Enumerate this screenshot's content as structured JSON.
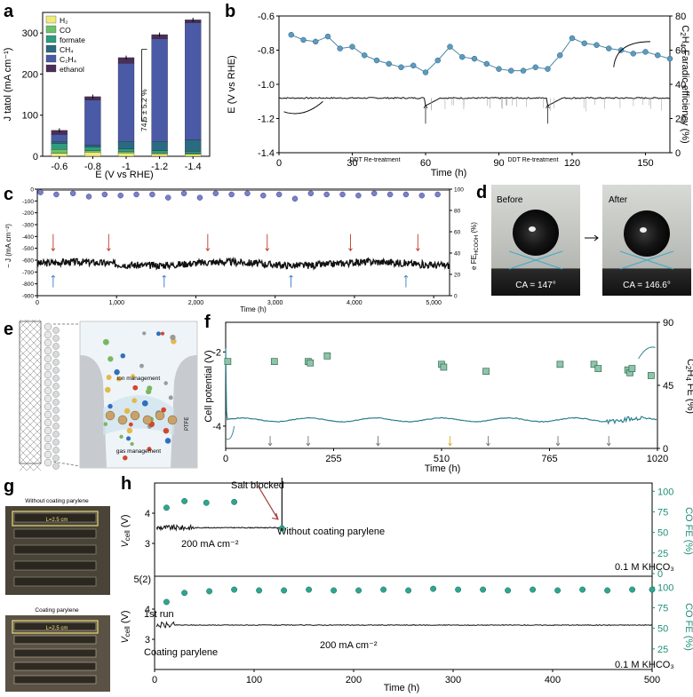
{
  "panel_labels": {
    "a": "a",
    "b": "b",
    "c": "c",
    "d": "d",
    "e": "e",
    "f": "f",
    "g": "g",
    "h": "h"
  },
  "chart_data": [
    {
      "id": "a",
      "type": "bar",
      "xlabel": "E (V vs RHE)",
      "ylabel": "J tatol (mA cm⁻¹)",
      "categories": [
        "-0.6",
        "-0.8",
        "-1",
        "-1.2",
        "-1.4"
      ],
      "ylim": [
        0,
        350
      ],
      "yticks": [
        0,
        100,
        200,
        300
      ],
      "legend": [
        "H2",
        "CO",
        "formate",
        "CH4",
        "C2H4",
        "ethanol"
      ],
      "legend_display": [
        "H₂",
        "CO",
        "formate",
        "CH₄",
        "C₂H₄",
        "ethanol"
      ],
      "colors": [
        "#ecec7a",
        "#6cc26a",
        "#2e9c7e",
        "#2a6b82",
        "#4a5aa6",
        "#4a2e57"
      ],
      "series": [
        {
          "name": "H2",
          "values": [
            7,
            10,
            8,
            6,
            5
          ]
        },
        {
          "name": "CO",
          "values": [
            10,
            4,
            3,
            2,
            2
          ]
        },
        {
          "name": "formate",
          "values": [
            14,
            8,
            7,
            6,
            5
          ]
        },
        {
          "name": "CH4",
          "values": [
            5,
            5,
            18,
            22,
            28
          ]
        },
        {
          "name": "C2H4",
          "values": [
            17,
            110,
            190,
            250,
            285
          ]
        },
        {
          "name": "ethanol",
          "values": [
            10,
            8,
            14,
            10,
            7
          ]
        }
      ],
      "totals": [
        63,
        145,
        240,
        296,
        332
      ],
      "annotation": "74.5 ± 5.2 %"
    },
    {
      "id": "b",
      "type": "line",
      "xlabel": "Time (h)",
      "ylabel": "E (V vs RHE)",
      "ylabel_right": "C2H4 Faradic efficiency (%)",
      "xlim": [
        0,
        160
      ],
      "xticks": [
        0,
        30,
        60,
        90,
        120,
        150
      ],
      "ylim": [
        -1.4,
        -0.6
      ],
      "yticks": [
        -0.6,
        -0.8,
        -1.0,
        -1.2,
        -1.4
      ],
      "ylim_right": [
        0,
        80
      ],
      "yticks_right": [
        0,
        20,
        40,
        60,
        80
      ],
      "fe_x": [
        5,
        10,
        15,
        20,
        25,
        30,
        35,
        40,
        45,
        50,
        55,
        60,
        65,
        70,
        75,
        80,
        85,
        90,
        95,
        100,
        105,
        110,
        115,
        120,
        125,
        130,
        135,
        140,
        145,
        150,
        155,
        160
      ],
      "fe_y": [
        69,
        66,
        65,
        68,
        61,
        62,
        57,
        54,
        52,
        50,
        51,
        47,
        54,
        62,
        56,
        55,
        52,
        49,
        48,
        48,
        50,
        49,
        57,
        67,
        64,
        63,
        61,
        60,
        58,
        59,
        57,
        55
      ],
      "potential_base": -1.08,
      "annotations": [
        "DDT Re-treatment",
        "DDT Re-treatment"
      ],
      "treatment_times_h": [
        60,
        110
      ]
    },
    {
      "id": "c",
      "type": "line",
      "xlabel": "Time (h)",
      "ylabel": "− J (mA cm⁻²)",
      "ylabel_right": "FE HCOOH (%)",
      "xlim": [
        0,
        5200
      ],
      "xticks": [
        0,
        1000,
        2000,
        3000,
        4000,
        5000
      ],
      "xtick_labels": [
        "0",
        "1,000",
        "2,000",
        "3,000",
        "4,000",
        "5,000"
      ],
      "ylim": [
        -900,
        0
      ],
      "yticks": [
        0,
        -100,
        -200,
        -300,
        -400,
        -500,
        -600,
        -700,
        -800,
        -900
      ],
      "ylim_right": [
        0,
        100
      ],
      "yticks_right": [
        0,
        20,
        40,
        60,
        80,
        100
      ],
      "fe_x": [
        40,
        240,
        450,
        650,
        850,
        1050,
        1250,
        1450,
        1650,
        1850,
        2050,
        2250,
        2450,
        2650,
        2850,
        3050,
        3250,
        3450,
        3650,
        3850,
        4050,
        4250,
        4450,
        4650,
        4850,
        5050
      ],
      "fe_y": [
        97,
        95,
        96,
        93,
        95,
        94,
        95,
        95,
        92,
        96,
        92,
        96,
        95,
        96,
        94,
        95,
        91,
        96,
        95,
        95,
        94,
        96,
        95,
        95,
        94,
        95
      ],
      "current_base": -630,
      "red_arrow_times_h": [
        200,
        900,
        2150,
        2900,
        3950,
        4800
      ],
      "blue_arrow_times_h": [
        200,
        1600,
        3200,
        4650
      ]
    },
    {
      "id": "f",
      "type": "scatter",
      "xlabel": "Time (h)",
      "ylabel": "Cell potential (V)",
      "ylabel_right": "C2H4 FE (%)",
      "xlim": [
        0,
        1020
      ],
      "xticks": [
        0,
        255,
        510,
        765,
        1020
      ],
      "ylim": [
        -4.6,
        -1.2
      ],
      "yticks": [
        -2,
        -4
      ],
      "ylim_right": [
        0,
        90
      ],
      "yticks_right": [
        0,
        45,
        90
      ],
      "fe_x": [
        5,
        115,
        195,
        200,
        240,
        510,
        515,
        615,
        790,
        870,
        880,
        950,
        955,
        960,
        1005
      ],
      "fe_y": [
        62,
        62,
        62,
        61,
        66,
        60,
        58,
        55,
        60,
        60,
        57,
        56,
        54,
        57,
        52
      ],
      "cell_potential_base": -3.83,
      "gray_arrow_times_h": [
        105,
        195,
        360,
        620,
        785,
        905
      ],
      "yellow_arrow_times_h": [
        530
      ]
    },
    {
      "id": "h",
      "type": "line",
      "xlabel": "Time (h)",
      "ylabel": "Vcell (V)",
      "ylabel_right": "CO FE (%)",
      "xlim": [
        0,
        500
      ],
      "xticks": [
        0,
        100,
        200,
        300,
        400,
        500
      ],
      "top": {
        "ylim": [
          2,
          5
        ],
        "yticks": [
          2,
          3,
          4
        ],
        "yticks_right": [
          0,
          25,
          50,
          75,
          100
        ],
        "fe_x": [
          12,
          30,
          52,
          80,
          128
        ],
        "fe_y": [
          80,
          88,
          86,
          87,
          55
        ],
        "vcell_base": 3.52,
        "labels": {
          "blocked": "Salt blocked",
          "current": "200 mA cm⁻²",
          "condition": "Without coating parylene",
          "electrolyte": "0.1 M KHCO₃"
        }
      },
      "divider_label": "5(2)",
      "bottom": {
        "ylim": [
          2,
          5
        ],
        "yticks": [
          3,
          4
        ],
        "yticks_right": [
          25,
          50,
          75,
          100
        ],
        "fe_x": [
          12,
          30,
          55,
          80,
          105,
          130,
          155,
          180,
          205,
          230,
          255,
          280,
          305,
          330,
          355,
          380,
          405,
          430,
          455,
          480,
          500
        ],
        "fe_y": [
          82,
          93,
          95,
          97,
          96,
          96,
          97,
          96,
          96,
          97,
          96,
          98,
          97,
          97,
          96,
          97,
          96,
          97,
          96,
          97,
          97
        ],
        "vcell_base": 3.47,
        "labels": {
          "run": "1st run",
          "condition": "Coating parylene",
          "current": "200 mA cm⁻²",
          "electrolyte": "0.1 M KHCO₃"
        }
      }
    }
  ],
  "panel_d": {
    "before": "Before",
    "after": "After",
    "ca_before": "CA = 147°",
    "ca_after": "CA = 146.6°"
  },
  "panel_e": {
    "ion": "ion management",
    "gas": "gas management",
    "ptfe": "PTFE"
  },
  "panel_g": {
    "top_title": "Without coating parylene",
    "bottom_title": "Coating parylene",
    "length_top": "L=2.5 cm",
    "length_bottom": "L=2.5 cm"
  }
}
